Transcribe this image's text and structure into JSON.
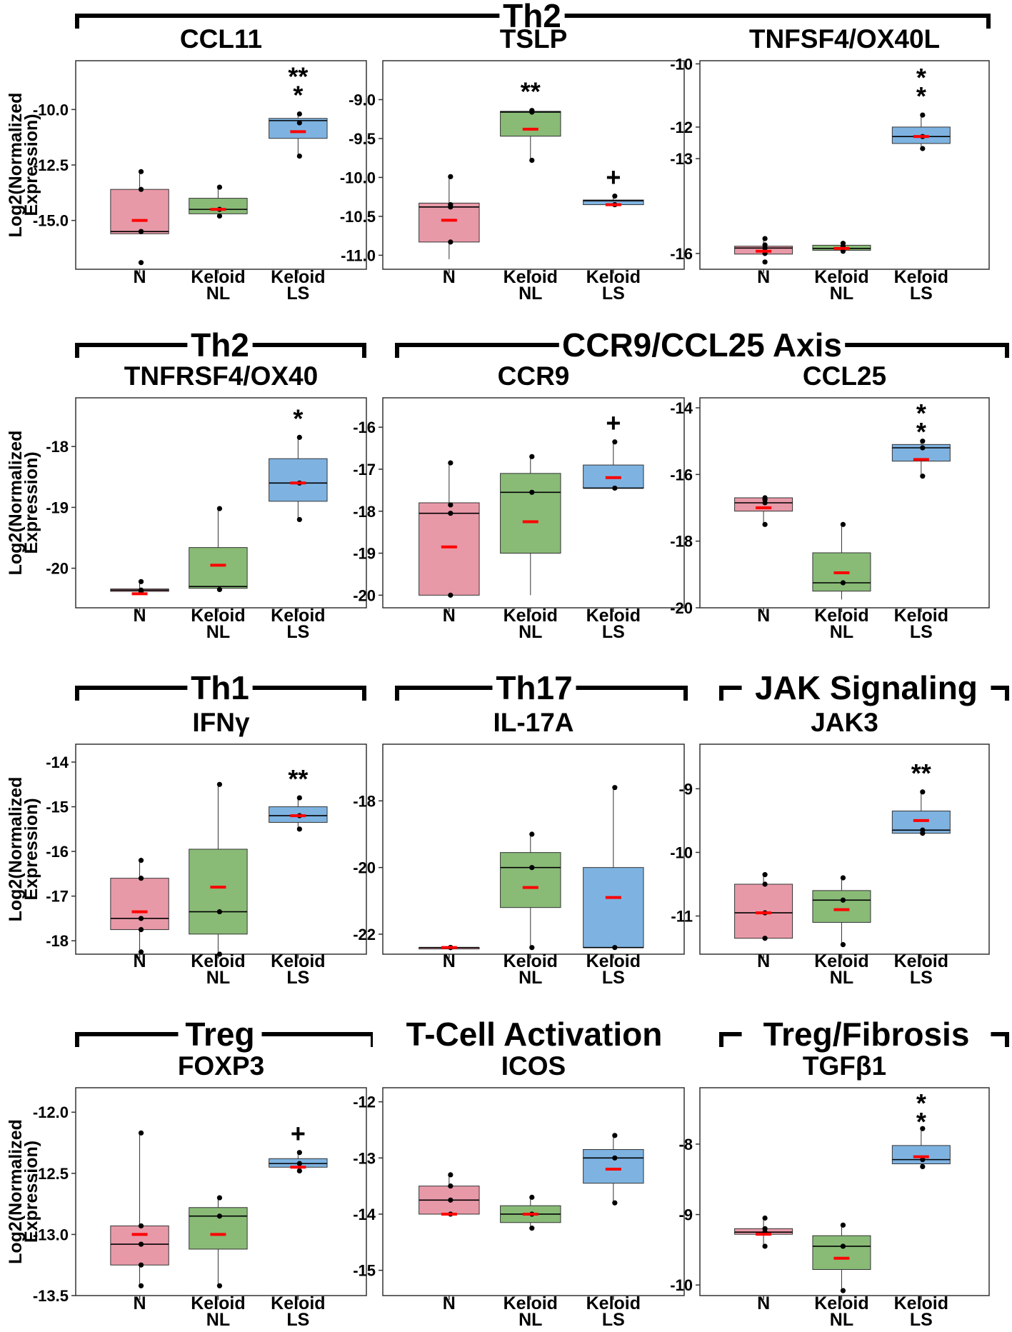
{
  "figure": {
    "ylabel_line1": "Log2(Normalized",
    "ylabel_line2": "Expression)",
    "colors": {
      "N": "#e899a8",
      "Keloid NL": "#89bb77",
      "Keloid LS": "#7eb3e1",
      "mean": "#ff0000",
      "sig_red": "#ff0000",
      "sig_black": "#000000"
    }
  },
  "groups": [
    {
      "label": "Th2"
    },
    {
      "label": "Th2"
    },
    {
      "label": "CCR9/CCL25 Axis"
    },
    {
      "label": "Th1"
    },
    {
      "label": "Th17"
    },
    {
      "label": "JAK Signaling"
    },
    {
      "label": "Treg"
    },
    {
      "label": "T-Cell Activation"
    },
    {
      "label": "Treg/Fibrosis"
    }
  ],
  "chart_data": [
    {
      "type": "box",
      "title": "CCL11",
      "categories": [
        [
          "N"
        ],
        [
          "Keloid",
          "NL"
        ],
        [
          "Keloid",
          "LS"
        ]
      ],
      "ylabel": "Log2(Normalized Expression)",
      "ylim": [
        -17.2,
        -7.8
      ],
      "yticks": [
        -15.0,
        -12.5,
        -10.0
      ],
      "ytick_labels": [
        "-15.0",
        "-12.5",
        "-10.0"
      ],
      "boxes": [
        {
          "q1": -15.6,
          "median": -15.5,
          "q3": -13.6,
          "wlo": -15.6,
          "whi": -12.8,
          "mean": -15.0,
          "points": [
            -12.8,
            -13.6,
            -15.5,
            -15.5,
            -16.9
          ]
        },
        {
          "q1": -14.7,
          "median": -14.5,
          "q3": -14.0,
          "wlo": -14.8,
          "whi": -13.5,
          "mean": -14.5,
          "points": [
            -13.5,
            -14.5,
            -14.8
          ]
        },
        {
          "q1": -11.3,
          "median": -10.5,
          "q3": -10.4,
          "wlo": -12.1,
          "whi": -10.2,
          "mean": -11.0,
          "points": [
            -10.2,
            -10.6,
            -12.1
          ]
        }
      ],
      "sig": [
        {
          "cat": 2,
          "lines": [
            {
              "text": "**",
              "color": "#000000"
            },
            {
              "text": "*",
              "color": "#ff0000"
            }
          ]
        }
      ]
    },
    {
      "type": "box",
      "title": "TSLP",
      "categories": [
        [
          "N"
        ],
        [
          "Keloid",
          "NL"
        ],
        [
          "Keloid",
          "LS"
        ]
      ],
      "ylabel": "Log2(Normalized Expression)",
      "ylim": [
        -11.18,
        -8.5
      ],
      "yticks": [
        -11.0,
        -10.5,
        -10.0,
        -9.5,
        -9.0
      ],
      "ytick_labels": [
        "-11.0",
        "-10.5",
        "-10.0",
        "-9.5",
        "-9.0"
      ],
      "boxes": [
        {
          "q1": -10.83,
          "median": -10.38,
          "q3": -10.33,
          "wlo": -11.05,
          "whi": -9.99,
          "mean": -10.55,
          "points": [
            -9.99,
            -10.35,
            -10.38,
            -10.83
          ]
        },
        {
          "q1": -9.47,
          "median": -9.16,
          "q3": -9.15,
          "wlo": -9.78,
          "whi": -9.14,
          "mean": -9.38,
          "points": [
            -9.14,
            -9.16,
            -9.78
          ]
        },
        {
          "q1": -10.35,
          "median": -10.3,
          "q3": -10.29,
          "wlo": -10.35,
          "whi": -10.24,
          "mean": -10.35,
          "points": [
            -10.24,
            -10.35,
            -10.35
          ]
        }
      ],
      "sig": [
        {
          "cat": 1,
          "lines": [
            {
              "text": "**",
              "color": "#000000"
            }
          ]
        },
        {
          "cat": 2,
          "lines": [
            {
              "text": "+",
              "color": "#ff0000"
            }
          ]
        }
      ]
    },
    {
      "type": "box",
      "title": "TNFSF4/OX40L",
      "categories": [
        [
          "N"
        ],
        [
          "Keloid",
          "NL"
        ],
        [
          "Keloid",
          "LS"
        ]
      ],
      "ylabel": "Log2(Normalized Expression)",
      "ylim": [
        -16.5,
        -9.9
      ],
      "yticks": [
        -16,
        -13,
        -12,
        -10
      ],
      "ytick_labels": [
        "-16",
        "-13",
        "-12",
        "-10"
      ],
      "boxes": [
        {
          "q1": -16.02,
          "median": -15.83,
          "q3": -15.77,
          "wlo": -16.02,
          "whi": -15.5,
          "mean": -15.93,
          "points": [
            -15.53,
            -15.73,
            -15.83,
            -16.0,
            -16.27
          ]
        },
        {
          "q1": -15.9,
          "median": -15.84,
          "q3": -15.74,
          "wlo": -15.93,
          "whi": -15.68,
          "mean": -15.84,
          "points": [
            -15.68,
            -15.78,
            -15.93
          ]
        },
        {
          "q1": -12.52,
          "median": -12.3,
          "q3": -12.0,
          "wlo": -12.68,
          "whi": -11.62,
          "mean": -12.3,
          "points": [
            -11.62,
            -12.3,
            -12.68
          ]
        }
      ],
      "sig": [
        {
          "cat": 2,
          "lines": [
            {
              "text": "*",
              "color": "#000000"
            },
            {
              "text": "*",
              "color": "#ff0000"
            }
          ]
        }
      ]
    },
    {
      "type": "box",
      "title": "TNFRSF4/OX40",
      "categories": [
        [
          "N"
        ],
        [
          "Keloid",
          "NL"
        ],
        [
          "Keloid",
          "LS"
        ]
      ],
      "ylabel": "Log2(Normalized Expression)",
      "ylim": [
        -20.65,
        -17.2
      ],
      "yticks": [
        -20,
        -19,
        -18
      ],
      "ytick_labels": [
        "-20",
        "-19",
        "-18"
      ],
      "boxes": [
        {
          "q1": -20.38,
          "median": -20.36,
          "q3": -20.34,
          "wlo": -20.38,
          "whi": -20.22,
          "mean": -20.42,
          "points": [
            -20.22,
            -20.36,
            -20.37,
            -20.38
          ]
        },
        {
          "q1": -20.33,
          "median": -20.3,
          "q3": -19.66,
          "wlo": -20.37,
          "whi": -19.02,
          "mean": -19.95,
          "points": [
            -19.02,
            -20.35
          ]
        },
        {
          "q1": -18.9,
          "median": -18.6,
          "q3": -18.2,
          "wlo": -19.2,
          "whi": -17.85,
          "mean": -18.6,
          "points": [
            -17.85,
            -18.6,
            -19.2
          ]
        }
      ],
      "sig": [
        {
          "cat": 2,
          "lines": [
            {
              "text": "*",
              "color": "#000000"
            }
          ]
        }
      ]
    },
    {
      "type": "box",
      "title": "CCR9",
      "categories": [
        [
          "N"
        ],
        [
          "Keloid",
          "NL"
        ],
        [
          "Keloid",
          "LS"
        ]
      ],
      "ylabel": "Log2(Normalized Expression)",
      "ylim": [
        -20.3,
        -15.3
      ],
      "yticks": [
        -20,
        -19,
        -18,
        -17,
        -16
      ],
      "ytick_labels": [
        "-20",
        "-19",
        "-18",
        "-17",
        "-16"
      ],
      "boxes": [
        {
          "q1": -20.0,
          "median": -18.05,
          "q3": -17.8,
          "wlo": -20.0,
          "whi": -16.85,
          "mean": -18.85,
          "points": [
            -16.85,
            -17.85,
            -18.05,
            -20.0
          ]
        },
        {
          "q1": -19.0,
          "median": -17.55,
          "q3": -17.1,
          "wlo": -20.0,
          "whi": -16.7,
          "mean": -18.25,
          "points": [
            -16.7,
            -17.55
          ]
        },
        {
          "q1": -17.45,
          "median": -17.45,
          "q3": -16.9,
          "wlo": -17.45,
          "whi": -16.35,
          "mean": -17.2,
          "points": [
            -16.35,
            -17.45
          ]
        }
      ],
      "sig": [
        {
          "cat": 2,
          "lines": [
            {
              "text": "+",
              "color": "#000000"
            }
          ]
        }
      ]
    },
    {
      "type": "box",
      "title": "CCL25",
      "categories": [
        [
          "N"
        ],
        [
          "Keloid",
          "NL"
        ],
        [
          "Keloid",
          "LS"
        ]
      ],
      "ylabel": "Log2(Normalized Expression)",
      "ylim": [
        -20,
        -13.7
      ],
      "yticks": [
        -20,
        -18,
        -16,
        -14
      ],
      "ytick_labels": [
        "-20",
        "-18",
        "-16",
        "-14"
      ],
      "boxes": [
        {
          "q1": -17.1,
          "median": -16.85,
          "q3": -16.7,
          "wlo": -17.5,
          "whi": -16.7,
          "mean": -17.0,
          "points": [
            -16.7,
            -16.75,
            -16.85,
            -17.5
          ]
        },
        {
          "q1": -19.5,
          "median": -19.25,
          "q3": -18.35,
          "wlo": -19.75,
          "whi": -17.5,
          "mean": -18.95,
          "points": [
            -17.5,
            -19.25
          ]
        },
        {
          "q1": -15.6,
          "median": -15.2,
          "q3": -15.1,
          "wlo": -16.05,
          "whi": -15.0,
          "mean": -15.55,
          "points": [
            -15.0,
            -15.2,
            -16.05
          ]
        }
      ],
      "sig": [
        {
          "cat": 2,
          "lines": [
            {
              "text": "*",
              "color": "#000000"
            },
            {
              "text": "*",
              "color": "#ff0000"
            }
          ]
        }
      ]
    },
    {
      "type": "box",
      "title": "IFNγ",
      "categories": [
        [
          "N"
        ],
        [
          "Keloid",
          "NL"
        ],
        [
          "Keloid",
          "LS"
        ]
      ],
      "ylabel": "Log2(Normalized Expression)",
      "ylim": [
        -18.3,
        -13.6
      ],
      "yticks": [
        -18,
        -17,
        -16,
        -15,
        -14
      ],
      "ytick_labels": [
        "-18",
        "-17",
        "-16",
        "-15",
        "-14"
      ],
      "boxes": [
        {
          "q1": -17.75,
          "median": -17.5,
          "q3": -16.6,
          "wlo": -18.25,
          "whi": -16.2,
          "mean": -17.35,
          "points": [
            -16.2,
            -16.6,
            -17.5,
            -17.75,
            -18.25
          ]
        },
        {
          "q1": -17.85,
          "median": -17.35,
          "q3": -15.95,
          "wlo": -18.3,
          "whi": -14.5,
          "mean": -16.8,
          "points": [
            -14.5,
            -17.35,
            -18.3
          ]
        },
        {
          "q1": -15.35,
          "median": -15.2,
          "q3": -15.0,
          "wlo": -15.5,
          "whi": -14.8,
          "mean": -15.2,
          "points": [
            -14.8,
            -15.2,
            -15.5
          ]
        }
      ],
      "sig": [
        {
          "cat": 2,
          "lines": [
            {
              "text": "**",
              "color": "#000000"
            }
          ]
        }
      ]
    },
    {
      "type": "box",
      "title": "IL-17A",
      "categories": [
        [
          "N"
        ],
        [
          "Keloid",
          "NL"
        ],
        [
          "Keloid",
          "LS"
        ]
      ],
      "ylabel": "Log2(Normalized Expression)",
      "ylim": [
        -22.6,
        -16.3
      ],
      "yticks": [
        -22,
        -20,
        -18
      ],
      "ytick_labels": [
        "-22",
        "-20",
        "-18"
      ],
      "boxes": [
        {
          "q1": -22.4,
          "median": -22.4,
          "q3": -22.4,
          "wlo": -22.4,
          "whi": -22.4,
          "mean": -22.4,
          "points": [
            -22.4,
            -22.4,
            -22.4
          ]
        },
        {
          "q1": -21.2,
          "median": -20.0,
          "q3": -19.55,
          "wlo": -22.4,
          "whi": -19.0,
          "mean": -20.6,
          "points": [
            -19.0,
            -20.0,
            -22.4
          ]
        },
        {
          "q1": -22.4,
          "median": -22.4,
          "q3": -20.0,
          "wlo": -22.4,
          "whi": -17.6,
          "mean": -20.9,
          "points": [
            -17.6,
            -22.4
          ]
        }
      ],
      "sig": []
    },
    {
      "type": "box",
      "title": "JAK3",
      "categories": [
        [
          "N"
        ],
        [
          "Keloid",
          "NL"
        ],
        [
          "Keloid",
          "LS"
        ]
      ],
      "ylabel": "Log2(Normalized Expression)",
      "ylim": [
        -11.6,
        -8.3
      ],
      "yticks": [
        -11,
        -10,
        -9
      ],
      "ytick_labels": [
        "-11",
        "-10",
        "-9"
      ],
      "boxes": [
        {
          "q1": -11.35,
          "median": -10.95,
          "q3": -10.5,
          "wlo": -11.35,
          "whi": -10.35,
          "mean": -10.95,
          "points": [
            -10.35,
            -10.5,
            -10.95,
            -11.35
          ]
        },
        {
          "q1": -11.1,
          "median": -10.75,
          "q3": -10.6,
          "wlo": -11.45,
          "whi": -10.4,
          "mean": -10.9,
          "points": [
            -10.4,
            -10.75,
            -11.45
          ]
        },
        {
          "q1": -9.7,
          "median": -9.65,
          "q3": -9.35,
          "wlo": -9.7,
          "whi": -9.05,
          "mean": -9.5,
          "points": [
            -9.05,
            -9.65,
            -9.7
          ]
        }
      ],
      "sig": [
        {
          "cat": 2,
          "lines": [
            {
              "text": "**",
              "color": "#000000"
            }
          ]
        }
      ]
    },
    {
      "type": "box",
      "title": "FOXP3",
      "categories": [
        [
          "N"
        ],
        [
          "Keloid",
          "NL"
        ],
        [
          "Keloid",
          "LS"
        ]
      ],
      "ylabel": "Log2(Normalized Expression)",
      "ylim": [
        -13.5,
        -11.8
      ],
      "yticks": [
        -13.5,
        -13.0,
        -12.5,
        -12.0
      ],
      "ytick_labels": [
        "-13.5",
        "-13.0",
        "-12.5",
        "-12.0"
      ],
      "boxes": [
        {
          "q1": -13.25,
          "median": -13.08,
          "q3": -12.93,
          "wlo": -13.42,
          "whi": -12.17,
          "mean": -13.0,
          "points": [
            -12.17,
            -12.93,
            -13.08,
            -13.25,
            -13.42
          ]
        },
        {
          "q1": -13.12,
          "median": -12.85,
          "q3": -12.78,
          "wlo": -13.42,
          "whi": -12.7,
          "mean": -13.0,
          "points": [
            -12.7,
            -12.85,
            -13.42
          ]
        },
        {
          "q1": -12.45,
          "median": -12.42,
          "q3": -12.38,
          "wlo": -12.48,
          "whi": -12.33,
          "mean": -12.45,
          "points": [
            -12.33,
            -12.42,
            -12.48
          ]
        }
      ],
      "sig": [
        {
          "cat": 2,
          "lines": [
            {
              "text": "+",
              "color": "#000000"
            }
          ]
        }
      ]
    },
    {
      "type": "box",
      "title": "ICOS",
      "categories": [
        [
          "N"
        ],
        [
          "Keloid",
          "NL"
        ],
        [
          "Keloid",
          "LS"
        ]
      ],
      "ylabel": "Log2(Normalized Expression)",
      "ylim": [
        -15.45,
        -11.75
      ],
      "yticks": [
        -15,
        -14,
        -13,
        -12
      ],
      "ytick_labels": [
        "-15",
        "-14",
        "-13",
        "-12"
      ],
      "boxes": [
        {
          "q1": -14.0,
          "median": -13.75,
          "q3": -13.5,
          "wlo": -14.0,
          "whi": -13.3,
          "mean": -14.0,
          "points": [
            -13.3,
            -13.5,
            -13.75,
            -14.0
          ]
        },
        {
          "q1": -14.15,
          "median": -14.0,
          "q3": -13.85,
          "wlo": -14.25,
          "whi": -13.7,
          "mean": -14.0,
          "points": [
            -13.7,
            -14.0,
            -14.25
          ]
        },
        {
          "q1": -13.45,
          "median": -13.0,
          "q3": -12.85,
          "wlo": -13.8,
          "whi": -12.6,
          "mean": -13.2,
          "points": [
            -12.6,
            -13.0,
            -13.8
          ]
        }
      ],
      "sig": []
    },
    {
      "type": "box",
      "title": "TGFβ1",
      "categories": [
        [
          "N"
        ],
        [
          "Keloid",
          "NL"
        ],
        [
          "Keloid",
          "LS"
        ]
      ],
      "ylabel": "Log2(Normalized Expression)",
      "ylim": [
        -10.15,
        -7.2
      ],
      "yticks": [
        -10,
        -9,
        -8
      ],
      "ytick_labels": [
        "-10",
        "-9",
        "-8"
      ],
      "boxes": [
        {
          "q1": -9.28,
          "median": -9.25,
          "q3": -9.2,
          "wlo": -9.45,
          "whi": -9.05,
          "mean": -9.28,
          "points": [
            -9.05,
            -9.2,
            -9.25,
            -9.45
          ]
        },
        {
          "q1": -9.78,
          "median": -9.45,
          "q3": -9.3,
          "wlo": -10.08,
          "whi": -9.15,
          "mean": -9.62,
          "points": [
            -9.15,
            -9.45,
            -10.08
          ]
        },
        {
          "q1": -8.28,
          "median": -8.22,
          "q3": -8.02,
          "wlo": -8.32,
          "whi": -7.78,
          "mean": -8.18,
          "points": [
            -7.78,
            -8.22,
            -8.32
          ]
        }
      ],
      "sig": [
        {
          "cat": 2,
          "lines": [
            {
              "text": "*",
              "color": "#000000"
            },
            {
              "text": "*",
              "color": "#ff0000"
            }
          ]
        }
      ]
    }
  ]
}
